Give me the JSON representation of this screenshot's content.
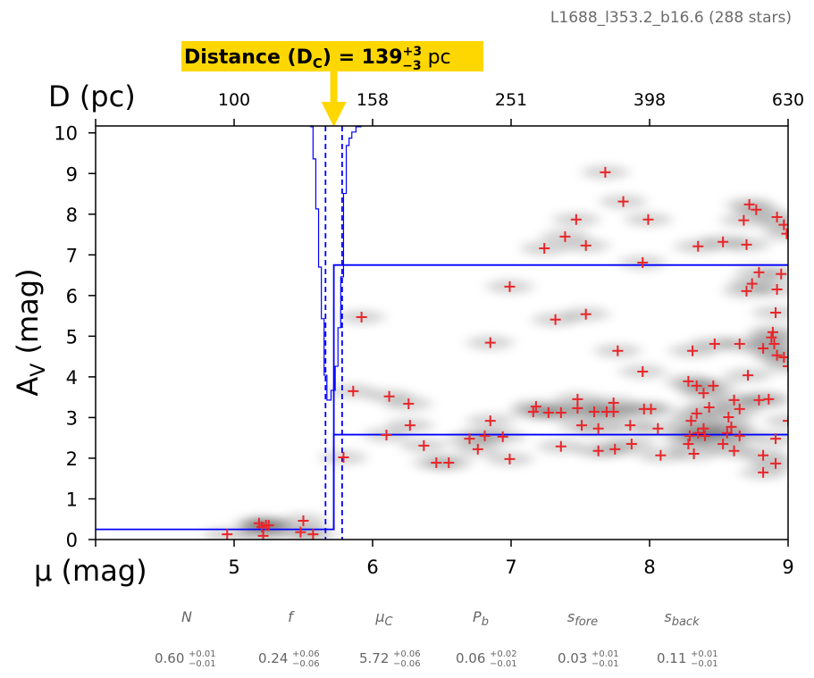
{
  "chart_data": {
    "type": "scatter",
    "subtitle": "L1688_l353.2_b16.6 (288 stars)",
    "annotation": {
      "label_prefix": "Distance (D",
      "label_sub": "C",
      "label_mid": ") = 139",
      "sup": "+3",
      "sub": "−3",
      "unit": " pc",
      "mu_c": 5.72,
      "color": "#FFD700"
    },
    "xlabel": "μ (mag)",
    "ylabel_main": "A",
    "ylabel_sub": "V",
    "ylabel_rest": " (mag)",
    "top_xlabel": "D (pc)",
    "xlim": [
      4,
      9
    ],
    "ylim": [
      0,
      10.17
    ],
    "xticks": [
      5,
      6,
      7,
      8,
      9
    ],
    "yticks": [
      0,
      1,
      2,
      3,
      4,
      5,
      6,
      7,
      8,
      9,
      10
    ],
    "top_ticks": [
      {
        "mu": 5,
        "label": "100"
      },
      {
        "mu": 6,
        "label": "158"
      },
      {
        "mu": 7,
        "label": "251"
      },
      {
        "mu": 8,
        "label": "398"
      },
      {
        "mu": 9,
        "label": "630"
      }
    ],
    "colors": {
      "stars": "#E8262A",
      "model": "#0000FF",
      "annotation": "#FFD700"
    },
    "model": {
      "mu_c": 5.72,
      "mu_c_err": 0.06,
      "foreground_av": 0.25,
      "background_upper": 6.75,
      "background_lower": 2.58
    },
    "posterior_outline": [
      [
        5.55,
        10.15
      ],
      [
        5.57,
        10.15
      ],
      [
        5.57,
        9.36
      ],
      [
        5.59,
        9.36
      ],
      [
        5.59,
        8.13
      ],
      [
        5.61,
        8.13
      ],
      [
        5.61,
        6.7
      ],
      [
        5.63,
        6.7
      ],
      [
        5.63,
        5.43
      ],
      [
        5.65,
        5.43
      ],
      [
        5.65,
        4.04
      ],
      [
        5.67,
        4.04
      ],
      [
        5.67,
        3.43
      ],
      [
        5.7,
        3.43
      ],
      [
        5.7,
        3.67
      ],
      [
        5.73,
        3.67
      ],
      [
        5.73,
        4.26
      ],
      [
        5.75,
        4.26
      ],
      [
        5.75,
        5.21
      ],
      [
        5.77,
        5.21
      ],
      [
        5.77,
        6.46
      ],
      [
        5.79,
        6.46
      ],
      [
        5.79,
        8.51
      ],
      [
        5.81,
        8.51
      ],
      [
        5.81,
        9.69
      ],
      [
        5.83,
        9.69
      ],
      [
        5.83,
        9.87
      ],
      [
        5.85,
        9.87
      ],
      [
        5.85,
        10.02
      ],
      [
        5.88,
        10.02
      ],
      [
        5.88,
        10.15
      ],
      [
        5.92,
        10.15
      ]
    ],
    "stars": [
      [
        4.95,
        0.13
      ],
      [
        5.18,
        0.4
      ],
      [
        5.2,
        0.31
      ],
      [
        5.23,
        0.35
      ],
      [
        5.25,
        0.35
      ],
      [
        5.21,
        0.09
      ],
      [
        5.5,
        0.46
      ],
      [
        5.48,
        0.18
      ],
      [
        5.57,
        0.13
      ],
      [
        5.79,
        2.02
      ],
      [
        5.92,
        5.47
      ],
      [
        5.86,
        3.65
      ],
      [
        6.12,
        3.52
      ],
      [
        6.26,
        3.34
      ],
      [
        6.27,
        2.81
      ],
      [
        6.1,
        2.57
      ],
      [
        6.37,
        2.31
      ],
      [
        6.46,
        1.89
      ],
      [
        6.55,
        1.89
      ],
      [
        6.7,
        2.48
      ],
      [
        6.76,
        2.22
      ],
      [
        6.85,
        2.92
      ],
      [
        6.81,
        2.55
      ],
      [
        6.94,
        2.53
      ],
      [
        6.99,
        1.98
      ],
      [
        6.85,
        4.84
      ],
      [
        6.99,
        6.22
      ],
      [
        7.24,
        7.16
      ],
      [
        7.39,
        7.45
      ],
      [
        7.47,
        7.87
      ],
      [
        7.54,
        7.23
      ],
      [
        7.32,
        5.41
      ],
      [
        7.54,
        5.54
      ],
      [
        7.36,
        3.12
      ],
      [
        7.27,
        3.12
      ],
      [
        7.18,
        3.27
      ],
      [
        7.16,
        3.14
      ],
      [
        7.48,
        3.45
      ],
      [
        7.48,
        3.23
      ],
      [
        7.51,
        2.81
      ],
      [
        7.6,
        3.14
      ],
      [
        7.63,
        2.73
      ],
      [
        7.63,
        2.18
      ],
      [
        7.36,
        2.29
      ],
      [
        7.69,
        3.14
      ],
      [
        7.68,
        9.03
      ],
      [
        7.81,
        8.31
      ],
      [
        7.74,
        3.36
      ],
      [
        7.74,
        3.14
      ],
      [
        7.77,
        4.64
      ],
      [
        7.75,
        2.22
      ],
      [
        7.86,
        2.81
      ],
      [
        7.87,
        2.35
      ],
      [
        7.95,
        4.13
      ],
      [
        7.96,
        3.21
      ],
      [
        8.01,
        3.21
      ],
      [
        7.99,
        7.87
      ],
      [
        7.95,
        6.81
      ],
      [
        8.06,
        2.73
      ],
      [
        8.08,
        2.07
      ],
      [
        8.35,
        7.21
      ],
      [
        8.53,
        7.32
      ],
      [
        8.72,
        8.24
      ],
      [
        8.77,
        8.11
      ],
      [
        8.68,
        7.85
      ],
      [
        8.7,
        7.25
      ],
      [
        8.7,
        6.11
      ],
      [
        8.74,
        6.29
      ],
      [
        8.79,
        6.57
      ],
      [
        8.92,
        7.93
      ],
      [
        8.97,
        7.74
      ],
      [
        8.99,
        7.52
      ],
      [
        8.95,
        6.53
      ],
      [
        8.92,
        6.15
      ],
      [
        8.91,
        5.58
      ],
      [
        8.89,
        5.1
      ],
      [
        8.88,
        4.97
      ],
      [
        8.9,
        4.81
      ],
      [
        8.92,
        4.53
      ],
      [
        8.97,
        4.48
      ],
      [
        9.0,
        4.26
      ],
      [
        8.71,
        4.04
      ],
      [
        8.82,
        4.7
      ],
      [
        8.65,
        4.81
      ],
      [
        8.47,
        4.81
      ],
      [
        8.31,
        4.64
      ],
      [
        8.46,
        3.78
      ],
      [
        8.28,
        3.89
      ],
      [
        8.34,
        3.78
      ],
      [
        8.39,
        3.6
      ],
      [
        8.43,
        3.25
      ],
      [
        8.34,
        3.1
      ],
      [
        8.3,
        2.92
      ],
      [
        8.39,
        2.73
      ],
      [
        8.35,
        2.62
      ],
      [
        8.4,
        2.55
      ],
      [
        8.29,
        2.55
      ],
      [
        8.28,
        2.35
      ],
      [
        8.32,
        2.11
      ],
      [
        8.53,
        2.35
      ],
      [
        8.56,
        2.62
      ],
      [
        8.59,
        2.77
      ],
      [
        8.57,
        3.01
      ],
      [
        8.65,
        2.55
      ],
      [
        8.61,
        2.18
      ],
      [
        8.65,
        3.21
      ],
      [
        8.61,
        3.43
      ],
      [
        8.79,
        3.43
      ],
      [
        8.86,
        3.45
      ],
      [
        9.0,
        2.92
      ],
      [
        8.91,
        2.48
      ],
      [
        8.91,
        1.87
      ],
      [
        8.82,
        2.07
      ],
      [
        8.82,
        1.65
      ]
    ]
  },
  "parameters": [
    {
      "name": "N",
      "sub": "",
      "value": "0.60",
      "plus": "+0.01",
      "minus": "−0.01"
    },
    {
      "name": "f",
      "sub": "",
      "value": "0.24",
      "plus": "+0.06",
      "minus": "−0.06"
    },
    {
      "name": "μ",
      "sub": "C",
      "value": "5.72",
      "plus": "+0.06",
      "minus": "−0.06"
    },
    {
      "name": "P",
      "sub": "b",
      "value": "0.06",
      "plus": "+0.02",
      "minus": "−0.01"
    },
    {
      "name": "s",
      "sub": "fore",
      "value": "0.03",
      "plus": "+0.01",
      "minus": "−0.01"
    },
    {
      "name": "s",
      "sub": "back",
      "value": "0.11",
      "plus": "+0.01",
      "minus": "−0.01"
    }
  ]
}
